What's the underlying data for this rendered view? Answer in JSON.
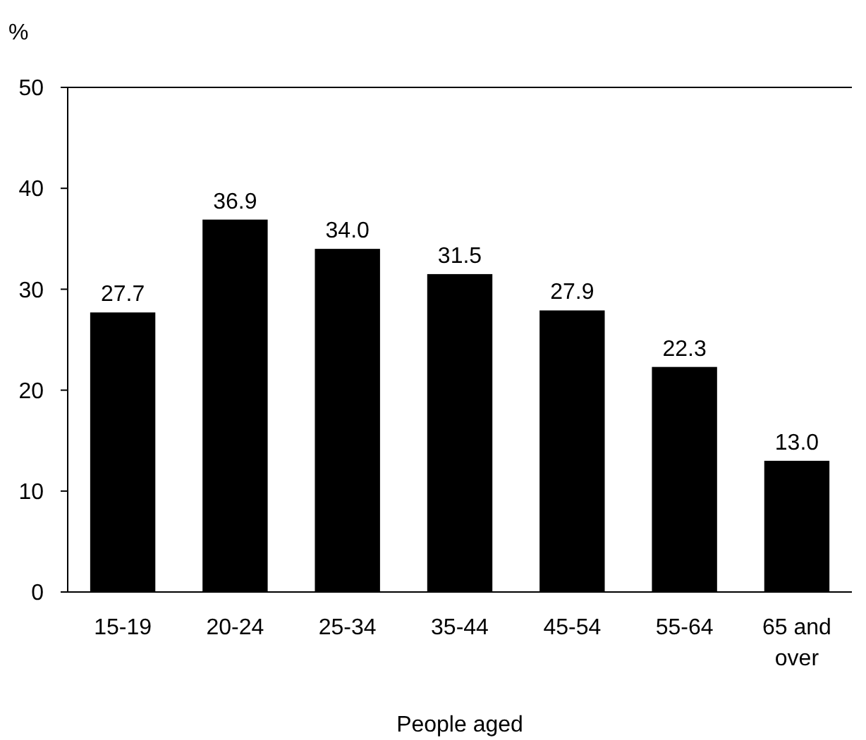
{
  "chart_data": {
    "type": "bar",
    "xlabel": "People aged",
    "ylabel": "%",
    "categories": [
      "15-19",
      "20-24",
      "25-34",
      "35-44",
      "45-54",
      "55-64",
      "65 and over"
    ],
    "values": [
      27.7,
      36.9,
      34.0,
      31.5,
      27.9,
      22.3,
      13.0
    ],
    "value_labels": [
      "27.7",
      "36.9",
      "34.0",
      "31.5",
      "27.9",
      "22.3",
      "13.0"
    ],
    "color": "#000000",
    "ylim": [
      0,
      50
    ],
    "yticks": [
      0,
      10,
      20,
      30,
      40,
      50
    ],
    "grid": false
  }
}
